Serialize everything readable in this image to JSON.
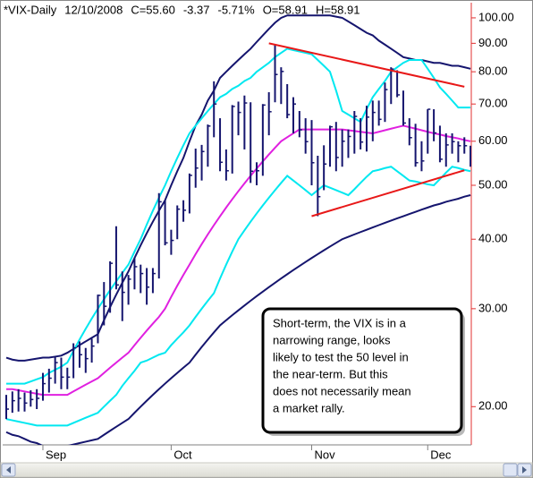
{
  "chart_data": {
    "type": "ohlc",
    "header": [
      {
        "text": "*VIX-Daily",
        "color": "#000080"
      },
      {
        "text": "12/10/2008",
        "color": "#000080"
      },
      {
        "text": "C=55.60",
        "color": "#e00000"
      },
      {
        "text": "-3.37",
        "color": "#e00000"
      },
      {
        "text": "-5.71%",
        "color": "#e00000"
      },
      {
        "text": "O=58.91",
        "color": "#e00000"
      },
      {
        "text": "H=58.91",
        "color": "#000080"
      }
    ],
    "categories": [
      null,
      null,
      null,
      null,
      null,
      null,
      "Sep",
      null,
      null,
      null,
      null,
      null,
      null,
      null,
      null,
      null,
      null,
      null,
      null,
      null,
      null,
      null,
      null,
      null,
      null,
      null,
      null,
      "Oct",
      null,
      null,
      null,
      null,
      null,
      null,
      null,
      null,
      null,
      null,
      null,
      null,
      null,
      null,
      null,
      null,
      null,
      null,
      null,
      null,
      null,
      null,
      "Nov",
      null,
      null,
      null,
      null,
      null,
      null,
      null,
      null,
      null,
      null,
      null,
      null,
      null,
      null,
      null,
      null,
      null,
      null,
      "Dec",
      null,
      null,
      null,
      null,
      null,
      null,
      null
    ],
    "high": [
      21.0,
      21.3,
      21.5,
      21.2,
      21.4,
      21.5,
      23.0,
      23.4,
      24.6,
      24.5,
      23.5,
      26.0,
      26.2,
      25.5,
      26.5,
      31.8,
      33.5,
      36.5,
      42.2,
      35.0,
      34.5,
      37.0,
      36.0,
      35.5,
      35.5,
      48.4,
      47.0,
      41.6,
      46.0,
      47.0,
      52.5,
      58.2,
      59.1,
      64.3,
      76.9,
      66.0,
      58.0,
      69.7,
      70.7,
      72.5,
      70.5,
      55.0,
      70.0,
      73.5,
      89.5,
      81.5,
      76.0,
      72.0,
      68.0,
      66.0,
      65.5,
      56.5,
      59.0,
      64.0,
      65.0,
      63.0,
      63.0,
      68.0,
      66.0,
      69.5,
      71.0,
      71.0,
      76.5,
      81.5,
      80.5,
      74.0,
      66.0,
      64.5,
      60.0,
      68.5,
      68.5,
      64.0,
      62.0,
      62.0,
      60.0,
      61.0,
      58.9
    ],
    "low": [
      19.0,
      19.5,
      19.6,
      19.6,
      20.0,
      19.8,
      20.5,
      21.2,
      22.0,
      21.5,
      21.5,
      22.5,
      23.5,
      23.0,
      24.0,
      26.0,
      28.0,
      29.5,
      32.5,
      28.5,
      30.5,
      32.5,
      32.0,
      30.5,
      32.0,
      34.0,
      39.0,
      37.5,
      40.0,
      43.0,
      44.5,
      49.5,
      51.0,
      54.0,
      61.0,
      53.0,
      51.0,
      52.5,
      61.5,
      58.0,
      50.5,
      50.0,
      52.0,
      61.5,
      70.5,
      70.0,
      66.0,
      62.0,
      61.0,
      57.0,
      50.0,
      44.0,
      49.0,
      54.0,
      53.0,
      54.0,
      56.0,
      57.0,
      58.0,
      57.5,
      60.0,
      64.0,
      65.0,
      70.0,
      72.0,
      64.0,
      59.0,
      54.0,
      53.0,
      57.0,
      60.0,
      55.0,
      54.0,
      57.0,
      55.0,
      57.0,
      54.0
    ],
    "close": [
      19.8,
      20.5,
      20.7,
      20.3,
      20.6,
      20.7,
      22.0,
      22.5,
      24.0,
      22.6,
      22.6,
      25.5,
      24.8,
      24.4,
      25.7,
      31.7,
      30.3,
      36.2,
      33.1,
      32.1,
      33.9,
      35.7,
      34.7,
      32.8,
      34.7,
      46.7,
      39.4,
      39.8,
      45.3,
      45.1,
      52.1,
      53.7,
      57.5,
      63.9,
      70.0,
      55.0,
      53.1,
      69.3,
      67.6,
      70.3,
      53.0,
      53.1,
      69.7,
      67.8,
      79.1,
      80.1,
      67.0,
      70.0,
      62.9,
      59.9,
      54.9,
      47.7,
      54.6,
      63.7,
      56.1,
      60.0,
      61.2,
      66.5,
      59.8,
      66.3,
      67.6,
      65.7,
      74.3,
      80.9,
      72.7,
      64.7,
      60.9,
      54.9,
      55.3,
      68.5,
      62.1,
      55.7,
      59.1,
      59.9,
      58.9,
      58.9,
      55.6
    ],
    "bar_color": "#15156e",
    "series": [
      {
        "color": "#15156e",
        "values": [
          24.5,
          24.3,
          24.2,
          24.2,
          24.3,
          24.4,
          24.5,
          24.5,
          24.6,
          24.7,
          25.0,
          25.4,
          25.8,
          26.2,
          26.6,
          27.0,
          28.6,
          30.2,
          31.8,
          33.4,
          35.0,
          37,
          39,
          41,
          43,
          45,
          47,
          50,
          53,
          56,
          60,
          64,
          67,
          71,
          74,
          78,
          80,
          82,
          84,
          86,
          88,
          90.5,
          93,
          95.5,
          98,
          100,
          101,
          101,
          101,
          101,
          101,
          101,
          101,
          101,
          100.5,
          100,
          98.5,
          97,
          95.5,
          94,
          93,
          91,
          89.5,
          88,
          86.5,
          85,
          84.5,
          84,
          84,
          83.5,
          83,
          83,
          82.5,
          82,
          82,
          81.5,
          81
        ]
      },
      {
        "color": "#00e8f0",
        "values": [
          22,
          22,
          22,
          22,
          22.2,
          22.4,
          22.6,
          23,
          23.3,
          23.6,
          24,
          25.2,
          26.4,
          27.6,
          28.8,
          30,
          31.2,
          32.4,
          33.6,
          34.8,
          36,
          38,
          40,
          42.5,
          45,
          47.5,
          50,
          53,
          56,
          59,
          62,
          64,
          66,
          68,
          70,
          72,
          73,
          74.5,
          75.5,
          77,
          78,
          80,
          81.5,
          83,
          85,
          86.5,
          88,
          87.5,
          87,
          86.5,
          86,
          84,
          82,
          80,
          74,
          68,
          67,
          66,
          65,
          68.5,
          72,
          74.5,
          77,
          80,
          81.5,
          83,
          84,
          84,
          84,
          81,
          78,
          75,
          73,
          71,
          69,
          69,
          69
        ]
      },
      {
        "color": "#e020e0",
        "values": [
          21.5,
          21.5,
          21.4,
          21.3,
          21.2,
          21.1,
          21,
          21,
          21,
          21,
          21,
          21.3,
          21.6,
          21.9,
          22.2,
          22.5,
          23,
          23.5,
          24,
          24.5,
          25,
          25.8,
          26.6,
          27.4,
          28.2,
          29,
          30,
          31.5,
          33,
          34.5,
          36,
          37.6,
          39.2,
          40.8,
          42.4,
          44,
          45.6,
          47.2,
          48.8,
          50.4,
          52,
          53.6,
          55.2,
          56.8,
          58.4,
          60,
          61,
          62,
          63,
          63,
          63,
          63,
          63,
          63,
          63,
          63,
          62.8,
          62.6,
          62.4,
          62.2,
          62,
          62.4,
          62.8,
          63.2,
          63.6,
          64,
          63.6,
          63.2,
          62.8,
          62.4,
          62,
          61.7,
          61.3,
          61,
          60.7,
          60.3,
          60
        ]
      },
      {
        "color": "#00e8f0",
        "values": [
          19,
          18.9,
          18.8,
          18.7,
          18.6,
          18.5,
          18.5,
          18.5,
          18.5,
          18.5,
          18.5,
          18.7,
          18.9,
          19.1,
          19.3,
          19.5,
          20,
          20.5,
          21,
          21.8,
          22.5,
          23.2,
          24,
          24.2,
          24.5,
          24.8,
          25,
          25.8,
          26.5,
          27.2,
          28,
          29,
          30,
          31,
          32,
          34,
          36,
          38,
          40,
          41.5,
          43,
          44.5,
          46,
          47.5,
          49,
          50.5,
          52,
          51,
          50,
          49,
          48,
          49,
          50,
          49.5,
          49,
          48.5,
          48,
          49.2,
          50.5,
          51.8,
          53,
          53.3,
          53.7,
          54,
          53,
          52,
          51,
          50.8,
          50.5,
          50.2,
          50,
          51.3,
          52.7,
          54,
          53.7,
          53.3,
          53
        ]
      },
      {
        "color": "#15156e",
        "values": [
          18,
          17.8,
          17.7,
          17.5,
          17.3,
          17.2,
          17,
          17,
          17,
          17,
          17,
          17.1,
          17.2,
          17.3,
          17.4,
          17.5,
          17.8,
          18.1,
          18.4,
          18.7,
          19,
          19.5,
          20,
          20.5,
          21,
          21.5,
          22,
          22.5,
          23,
          23.5,
          24,
          24.8,
          25.6,
          26.4,
          27.2,
          28,
          28.6,
          29.2,
          29.8,
          30.4,
          31,
          31.6,
          32.2,
          32.8,
          33.4,
          34,
          34.6,
          35.2,
          35.8,
          36.4,
          37,
          37.6,
          38.2,
          38.8,
          39.4,
          40,
          40.4,
          40.8,
          41.2,
          41.6,
          42,
          42.4,
          42.8,
          43.2,
          43.6,
          44,
          44.4,
          44.8,
          45.2,
          45.6,
          46,
          46.3,
          46.7,
          47,
          47.3,
          47.7,
          48
        ]
      }
    ],
    "trendlines": [
      {
        "color": "#e81818",
        "start": [
          43,
          90
        ],
        "end": [
          75,
          75.2
        ]
      },
      {
        "color": "#e81818",
        "start": [
          50,
          44
        ],
        "end": [
          75,
          53.2
        ]
      }
    ],
    "annotation": [
      "Short-term, the VIX is in a",
      "narrowing range, looks",
      "likely to test the 50 level in",
      "the near-term.  But this",
      "does not necessarily mean",
      "a market rally."
    ],
    "log": true,
    "ylim": [
      17.2,
      105.3
    ],
    "yticks": [
      {
        "value": 20,
        "label": "20.00"
      },
      {
        "value": 30,
        "label": "30.00"
      },
      {
        "value": 40,
        "label": "40.00"
      },
      {
        "value": 50,
        "label": "50.00"
      },
      {
        "value": 60,
        "label": "60.00"
      },
      {
        "value": 70,
        "label": "70.00"
      },
      {
        "value": 80,
        "label": "80.00"
      },
      {
        "value": 90,
        "label": "90.00"
      },
      {
        "value": 100,
        "label": "100.00"
      }
    ]
  }
}
